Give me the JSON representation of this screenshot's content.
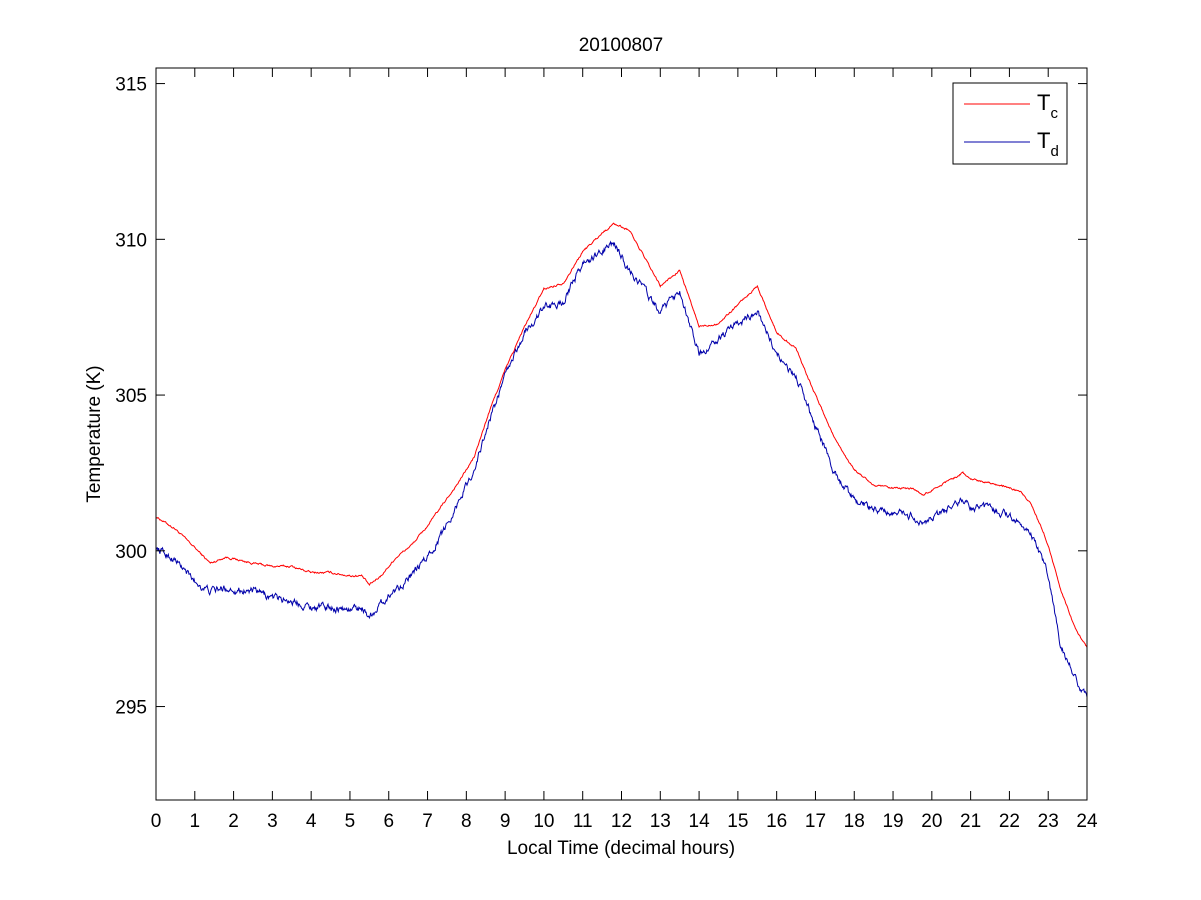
{
  "chart_data": {
    "type": "line",
    "title": "20100807",
    "xlabel": "Local Time (decimal hours)",
    "ylabel": "Temperature (K)",
    "xlim": [
      0,
      24
    ],
    "ylim": [
      292,
      315.5
    ],
    "xticks": [
      0,
      1,
      2,
      3,
      4,
      5,
      6,
      7,
      8,
      9,
      10,
      11,
      12,
      13,
      14,
      15,
      16,
      17,
      18,
      19,
      20,
      21,
      22,
      23,
      24
    ],
    "yticks": [
      295,
      300,
      305,
      310,
      315
    ],
    "grid": false,
    "legend_position": "top-right",
    "series": [
      {
        "name": "T_c",
        "legend_main": "T",
        "legend_sub": "c",
        "color": "#ff0000",
        "noise": 0.05,
        "x": [
          0,
          0.5,
          1.0,
          1.4,
          1.8,
          2.5,
          3.0,
          3.5,
          4.0,
          4.5,
          5.0,
          5.3,
          5.5,
          5.8,
          6.2,
          6.6,
          7.0,
          7.4,
          7.8,
          8.2,
          8.6,
          9.0,
          9.5,
          10.0,
          10.5,
          11.0,
          11.5,
          11.8,
          12.2,
          12.6,
          13.0,
          13.5,
          14.0,
          14.5,
          15.0,
          15.5,
          16.0,
          16.5,
          17.0,
          17.5,
          18.0,
          18.5,
          19.0,
          19.5,
          19.8,
          20.2,
          20.5,
          20.8,
          21.0,
          21.5,
          22.0,
          22.3,
          22.6,
          23.0,
          23.3,
          23.7,
          24.0
        ],
        "y": [
          301.1,
          300.7,
          300.1,
          299.6,
          299.8,
          299.6,
          299.5,
          299.5,
          299.3,
          299.3,
          299.2,
          299.2,
          298.9,
          299.2,
          299.8,
          300.2,
          300.8,
          301.5,
          302.2,
          303.0,
          304.5,
          305.8,
          307.2,
          308.4,
          308.6,
          309.6,
          310.2,
          310.5,
          310.3,
          309.4,
          308.5,
          309.0,
          307.2,
          307.3,
          307.9,
          308.5,
          307.0,
          306.5,
          305.0,
          303.6,
          302.6,
          302.1,
          302.0,
          302.0,
          301.8,
          302.1,
          302.3,
          302.5,
          302.3,
          302.2,
          302.0,
          301.9,
          301.4,
          300.2,
          298.8,
          297.5,
          296.9
        ]
      },
      {
        "name": "T_d",
        "legend_main": "T",
        "legend_sub": "d",
        "color": "#0000aa",
        "noise": 0.18,
        "x": [
          0,
          0.5,
          1.0,
          1.4,
          1.8,
          2.5,
          3.0,
          3.5,
          4.0,
          4.5,
          5.0,
          5.3,
          5.5,
          5.8,
          6.2,
          6.6,
          7.0,
          7.4,
          7.8,
          8.2,
          8.6,
          9.0,
          9.5,
          10.0,
          10.5,
          11.0,
          11.5,
          11.8,
          12.2,
          12.6,
          13.0,
          13.5,
          14.0,
          14.5,
          15.0,
          15.5,
          16.0,
          16.5,
          17.0,
          17.5,
          18.0,
          18.5,
          19.0,
          19.5,
          19.8,
          20.2,
          20.5,
          20.8,
          21.0,
          21.5,
          22.0,
          22.3,
          22.6,
          23.0,
          23.3,
          23.7,
          24.0
        ],
        "y": [
          300.1,
          299.7,
          299.0,
          298.7,
          298.8,
          298.7,
          298.5,
          298.4,
          298.2,
          298.2,
          298.1,
          298.2,
          297.9,
          298.3,
          298.8,
          299.2,
          299.8,
          300.6,
          301.6,
          302.6,
          304.2,
          305.6,
          307.0,
          307.8,
          308.0,
          309.2,
          309.6,
          309.9,
          309.0,
          308.4,
          307.6,
          308.4,
          306.3,
          306.8,
          307.3,
          307.7,
          306.3,
          305.6,
          304.0,
          302.5,
          301.6,
          301.3,
          301.2,
          301.1,
          300.8,
          301.2,
          301.4,
          301.6,
          301.4,
          301.3,
          301.1,
          300.9,
          300.4,
          299.2,
          297.1,
          295.9,
          295.3
        ]
      }
    ]
  }
}
